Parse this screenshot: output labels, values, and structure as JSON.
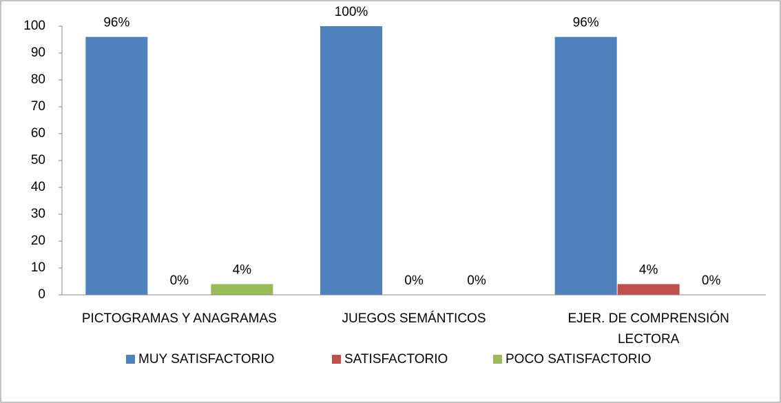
{
  "chart_data": {
    "type": "bar",
    "categories": [
      "PICTOGRAMAS Y ANAGRAMAS",
      "JUEGOS SEMÁNTICOS",
      "EJER. DE COMPRENSIÓN LECTORA"
    ],
    "series": [
      {
        "name": "MUY SATISFACTORIO",
        "color": "#4f81bd",
        "values": [
          96,
          100,
          96
        ],
        "value_labels": [
          "96%",
          "100%",
          "96%"
        ]
      },
      {
        "name": "SATISFACTORIO",
        "color": "#c0504d",
        "values": [
          0,
          0,
          4
        ],
        "value_labels": [
          "0%",
          "0%",
          "4%"
        ]
      },
      {
        "name": "POCO SATISFACTORIO",
        "color": "#9bbb59",
        "values": [
          4,
          0,
          0
        ],
        "value_labels": [
          "4%",
          "0%",
          "0%"
        ]
      }
    ],
    "ylim": [
      0,
      100
    ],
    "yticks": [
      0,
      10,
      20,
      30,
      40,
      50,
      60,
      70,
      80,
      90,
      100
    ],
    "grid": false,
    "legend": "bottom"
  }
}
